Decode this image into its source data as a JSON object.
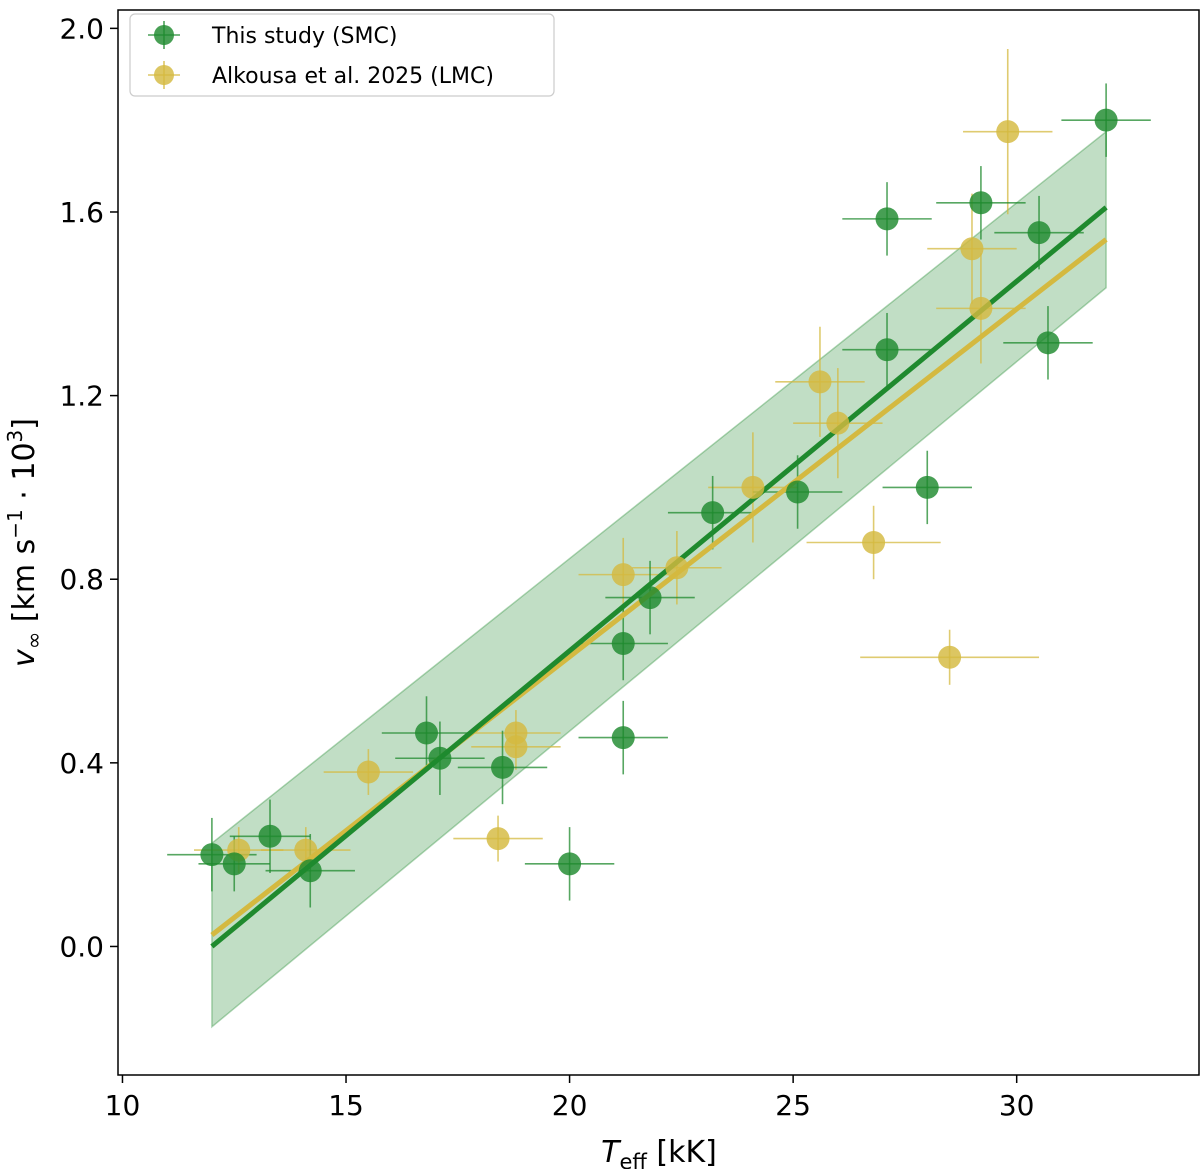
{
  "chart_data": {
    "type": "scatter",
    "xlabel_main": "T",
    "xlabel_sub": "eff",
    "xlabel_unit": "[kK]",
    "ylabel_main": "v",
    "ylabel_sub": "∞",
    "ylabel_unit_a": "[km s",
    "ylabel_exp_a": "−1",
    "ylabel_unit_b": " · 10",
    "ylabel_exp_b": "3",
    "ylabel_unit_c": "]",
    "xlim": [
      9.9,
      34.1
    ],
    "ylim": [
      -0.28,
      2.04
    ],
    "xticks": [
      10,
      15,
      20,
      25,
      30
    ],
    "xtick_labels": [
      "10",
      "15",
      "20",
      "25",
      "30"
    ],
    "yticks": [
      0.0,
      0.4,
      0.8,
      1.2,
      1.6,
      2.0
    ],
    "ytick_labels": [
      "0.0",
      "0.4",
      "0.8",
      "1.2",
      "1.6",
      "2.0"
    ],
    "legend": {
      "position": "top-left",
      "entries": [
        "This study (SMC)",
        "Alkousa et al. 2025 (LMC)"
      ]
    },
    "series": [
      {
        "name": "This study (SMC)",
        "color": "#1f8a2e",
        "points": [
          {
            "x": 12.0,
            "y": 0.2,
            "xerr": 1.0,
            "yerr": 0.08
          },
          {
            "x": 12.5,
            "y": 0.18,
            "xerr": 0.8,
            "yerr": 0.06
          },
          {
            "x": 13.3,
            "y": 0.24,
            "xerr": 0.9,
            "yerr": 0.08
          },
          {
            "x": 14.2,
            "y": 0.165,
            "xerr": 1.0,
            "yerr": 0.08
          },
          {
            "x": 16.8,
            "y": 0.465,
            "xerr": 1.0,
            "yerr": 0.08
          },
          {
            "x": 17.1,
            "y": 0.41,
            "xerr": 1.0,
            "yerr": 0.08
          },
          {
            "x": 18.5,
            "y": 0.39,
            "xerr": 1.0,
            "yerr": 0.08
          },
          {
            "x": 20.0,
            "y": 0.18,
            "xerr": 1.0,
            "yerr": 0.08
          },
          {
            "x": 21.2,
            "y": 0.66,
            "xerr": 1.0,
            "yerr": 0.08
          },
          {
            "x": 21.2,
            "y": 0.455,
            "xerr": 1.0,
            "yerr": 0.08
          },
          {
            "x": 21.8,
            "y": 0.76,
            "xerr": 1.0,
            "yerr": 0.08
          },
          {
            "x": 23.2,
            "y": 0.945,
            "xerr": 1.0,
            "yerr": 0.08
          },
          {
            "x": 25.1,
            "y": 0.99,
            "xerr": 1.0,
            "yerr": 0.08
          },
          {
            "x": 27.1,
            "y": 1.585,
            "xerr": 1.0,
            "yerr": 0.08
          },
          {
            "x": 27.1,
            "y": 1.3,
            "xerr": 1.0,
            "yerr": 0.08
          },
          {
            "x": 28.0,
            "y": 1.0,
            "xerr": 1.0,
            "yerr": 0.08
          },
          {
            "x": 29.2,
            "y": 1.62,
            "xerr": 1.0,
            "yerr": 0.08
          },
          {
            "x": 30.5,
            "y": 1.555,
            "xerr": 1.0,
            "yerr": 0.08
          },
          {
            "x": 30.7,
            "y": 1.315,
            "xerr": 1.0,
            "yerr": 0.08
          },
          {
            "x": 32.0,
            "y": 1.8,
            "xerr": 1.0,
            "yerr": 0.08
          }
        ],
        "fit": {
          "x": [
            12.0,
            32.0
          ],
          "y": [
            0.0,
            1.61
          ]
        },
        "band": {
          "x": [
            12.0,
            32.0
          ],
          "lower": [
            -0.175,
            1.435
          ],
          "upper": [
            0.225,
            1.775
          ]
        }
      },
      {
        "name": "Alkousa et al. 2025 (LMC)",
        "color": "#d4b940",
        "points": [
          {
            "x": 12.6,
            "y": 0.21,
            "xerr": 1.0,
            "yerr": 0.05
          },
          {
            "x": 14.1,
            "y": 0.21,
            "xerr": 1.0,
            "yerr": 0.05
          },
          {
            "x": 15.5,
            "y": 0.38,
            "xerr": 1.0,
            "yerr": 0.05
          },
          {
            "x": 18.4,
            "y": 0.235,
            "xerr": 1.0,
            "yerr": 0.05
          },
          {
            "x": 18.8,
            "y": 0.465,
            "xerr": 1.0,
            "yerr": 0.05
          },
          {
            "x": 18.8,
            "y": 0.435,
            "xerr": 1.0,
            "yerr": 0.05
          },
          {
            "x": 21.2,
            "y": 0.81,
            "xerr": 1.0,
            "yerr": 0.08
          },
          {
            "x": 22.4,
            "y": 0.825,
            "xerr": 1.0,
            "yerr": 0.08
          },
          {
            "x": 24.1,
            "y": 1.0,
            "xerr": 1.0,
            "yerr": 0.12
          },
          {
            "x": 25.6,
            "y": 1.23,
            "xerr": 1.0,
            "yerr": 0.12
          },
          {
            "x": 26.0,
            "y": 1.14,
            "xerr": 1.0,
            "yerr": 0.12
          },
          {
            "x": 26.8,
            "y": 0.88,
            "xerr": 1.5,
            "yerr": 0.08
          },
          {
            "x": 28.5,
            "y": 0.63,
            "xerr": 2.0,
            "yerr": 0.06
          },
          {
            "x": 29.0,
            "y": 1.52,
            "xerr": 1.0,
            "yerr": 0.12
          },
          {
            "x": 29.2,
            "y": 1.39,
            "xerr": 1.0,
            "yerr": 0.12
          },
          {
            "x": 29.8,
            "y": 1.775,
            "xerr": 1.0,
            "yerr": 0.18
          }
        ],
        "fit": {
          "x": [
            12.0,
            32.0
          ],
          "y": [
            0.025,
            1.54
          ]
        }
      }
    ]
  }
}
